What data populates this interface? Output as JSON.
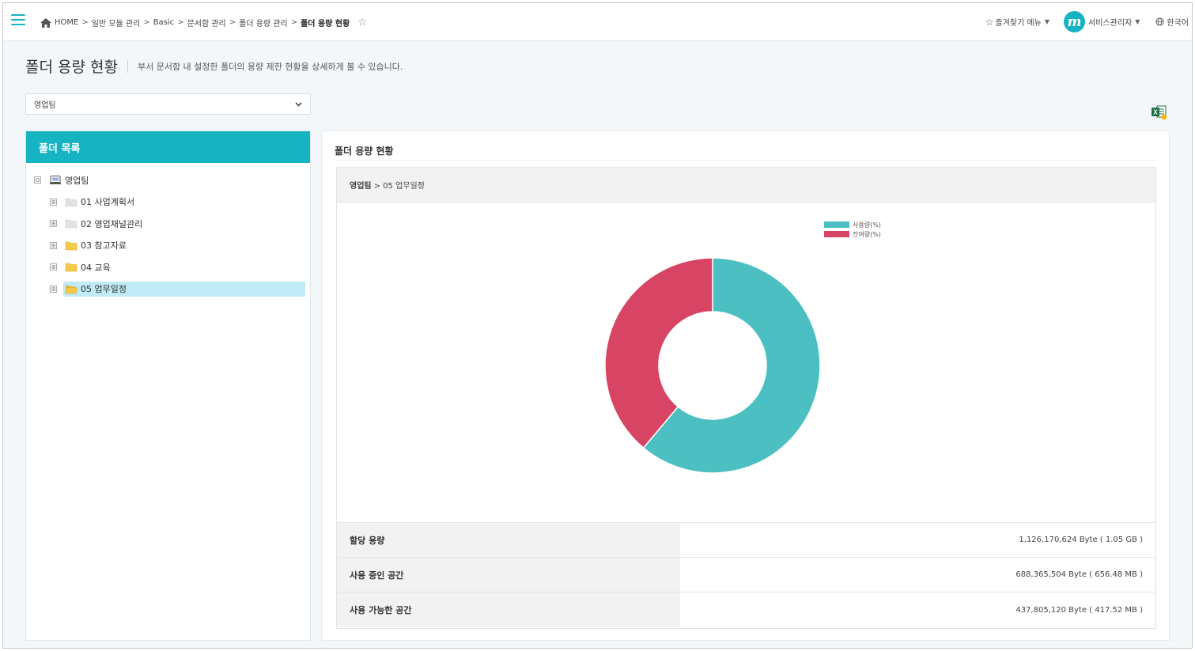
{
  "breadcrumb": {
    "items": [
      "HOME",
      "일반 모듈 관리",
      "Basic",
      "문서함 관리",
      "폴더 용량 관리",
      "폴더 용량 현황"
    ],
    "separator": ">"
  },
  "header": {
    "favorites_label": "즐겨찾기 메뉴",
    "user_name": "서비스관리자",
    "language": "한국어",
    "avatar_letter": "m"
  },
  "page": {
    "title": "폴더 용량 현황",
    "description": "부서 문서함 내 설정한 폴더의 용량 제한 현황을 상세하게 볼 수 있습니다."
  },
  "dept_select": {
    "selected": "영업팀"
  },
  "left_panel": {
    "header": "폴더 목록",
    "root": {
      "label": "영업팀",
      "toggle": "⊟"
    },
    "children": [
      {
        "label": "01 사업계획서",
        "toggle": "⊞",
        "icon": "folder-gray-icon"
      },
      {
        "label": "02 영업채널관리",
        "toggle": "⊞",
        "icon": "folder-gray-icon"
      },
      {
        "label": "03 참고자료",
        "toggle": "⊞",
        "icon": "folder-yellow-icon"
      },
      {
        "label": "04 교육",
        "toggle": "⊞",
        "icon": "folder-yellow-icon"
      },
      {
        "label": "05 업무일정",
        "toggle": "⊞",
        "icon": "folder-open-icon",
        "selected": true
      }
    ]
  },
  "right_panel": {
    "title": "폴더 용량 현황",
    "path_dept": "영업팀",
    "path_folder": "> 05 업무일정",
    "stats": [
      {
        "label": "할당 용량",
        "value": "1,126,170,624 Byte ( 1.05 GB )"
      },
      {
        "label": "사용 중인 공간",
        "value": "688,365,504 Byte ( 656.48 MB )"
      },
      {
        "label": "사용 가능한 공간",
        "value": "437,805,120 Byte ( 417.52 MB )"
      }
    ]
  },
  "colors": {
    "accent": "#16b4c2",
    "used": "#4bbfc1",
    "remaining": "#d84463"
  },
  "chart_data": {
    "type": "pie",
    "categories": [
      "사용량(%)",
      "잔여량(%)"
    ],
    "values": [
      61.1,
      38.9
    ],
    "colors": [
      "#4bbfc1",
      "#d84463"
    ],
    "legend_position": "top-right"
  }
}
